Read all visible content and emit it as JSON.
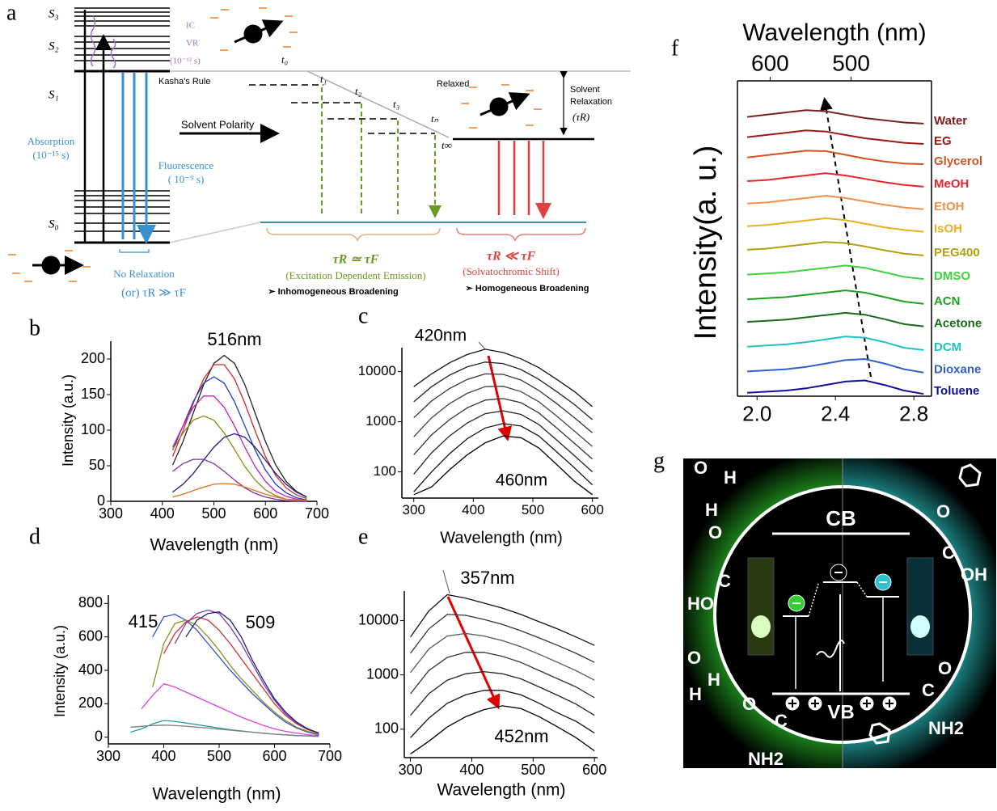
{
  "panel_labels": [
    "a",
    "b",
    "c",
    "d",
    "e",
    "f",
    "g"
  ],
  "diagram_a": {
    "s3": "S₃",
    "s2": "S₂",
    "s1": "S₁",
    "s0": "S₀",
    "ic": "IC",
    "vr": "VR",
    "vr_time": "(10⁻¹² s)",
    "kasha": "Kasha's Rule",
    "absorption": "Absorption",
    "absorption_time": "(10⁻¹⁵ s)",
    "fluorescence": "Fluorescence",
    "fluorescence_time": "( 10⁻⁹ s)",
    "no_relaxation": "No Relaxation",
    "no_relaxation_cond": "(or) τR ≫ τF",
    "solvent_polarity": "Solvent Polarity",
    "t0": "t₀",
    "t1": "t₁",
    "t2": "t₂",
    "t3": "t₃",
    "tn": "tₙ",
    "tinf": "t∞",
    "relaxed": "Relaxed",
    "solvent_relaxation_1": "Solvent",
    "solvent_relaxation_2": "Relaxation",
    "tau_r": "(τR)",
    "cond_green": "τR ≃ τF",
    "green_note": "(Excitation Dependent Emission)",
    "green_broad": "➢ Inhomogeneous Broadening",
    "cond_red": "τR ≪ τF",
    "red_note": "(Solvatochromic Shift)",
    "red_broad": "➢ Homogeneous Broadening"
  },
  "chart_data": [
    {
      "type": "line",
      "xlabel": "Wavelength (nm)",
      "ylabel": "Intensity (a.u.)",
      "annotations": [
        "516nm"
      ],
      "x": [
        420,
        440,
        460,
        480,
        500,
        520,
        540,
        560,
        580,
        600,
        620,
        640,
        660,
        680
      ],
      "xlim": [
        300,
        700
      ],
      "xticks": [
        300,
        400,
        500,
        600,
        700
      ],
      "ylim": [
        0,
        225
      ],
      "yticks": [
        0,
        50,
        100,
        150,
        200
      ],
      "series": [
        {
          "color": "#222222",
          "values": [
            51,
            84,
            124,
            164,
            194,
            205,
            194,
            164,
            124,
            84,
            51,
            28,
            14,
            6
          ]
        },
        {
          "color": "#d62728",
          "values": [
            63,
            99,
            138,
            172,
            192,
            192,
            172,
            138,
            99,
            63,
            36,
            19,
            9,
            4
          ]
        },
        {
          "color": "#1f3fbf",
          "values": [
            72,
            106,
            140,
            166,
            175,
            166,
            140,
            106,
            72,
            44,
            24,
            12,
            5,
            2
          ]
        },
        {
          "color": "#c020c0",
          "values": [
            76,
            106,
            132,
            148,
            148,
            132,
            106,
            76,
            49,
            28,
            14,
            7,
            3,
            1
          ]
        },
        {
          "color": "#8a8a10",
          "values": [
            73,
            96,
            114,
            120,
            114,
            96,
            73,
            49,
            30,
            16,
            8,
            3,
            1,
            0
          ]
        },
        {
          "color": "#1a1a80",
          "values": [
            13,
            24,
            39,
            58,
            76,
            90,
            95,
            90,
            76,
            58,
            39,
            24,
            13,
            6
          ]
        },
        {
          "color": "#7a30a0",
          "values": [
            42,
            53,
            59,
            59,
            53,
            42,
            30,
            19,
            11,
            6,
            3,
            1,
            0,
            0
          ]
        },
        {
          "color": "#e07020",
          "values": [
            6,
            10,
            15,
            20,
            24,
            25,
            24,
            20,
            15,
            10,
            6,
            3,
            2,
            1
          ]
        }
      ]
    },
    {
      "type": "line",
      "log_y": true,
      "xlabel": "Wavelength (nm)",
      "annotations": [
        "420nm",
        "460nm"
      ],
      "x": [
        300,
        330,
        360,
        390,
        420,
        450,
        480,
        510,
        540,
        570,
        600
      ],
      "xlim": [
        280,
        610
      ],
      "xticks": [
        300,
        400,
        500,
        600
      ],
      "ylim": [
        30,
        30000
      ],
      "yticks": [
        100,
        1000,
        10000
      ],
      "series": [
        {
          "color": "#111111",
          "values": [
            5000,
            9000,
            15000,
            22000,
            28000,
            24000,
            18000,
            12000,
            7000,
            4000,
            2000
          ]
        },
        {
          "color": "#222222",
          "values": [
            2500,
            5000,
            8500,
            12500,
            15500,
            14500,
            11000,
            7000,
            4000,
            2200,
            1100
          ]
        },
        {
          "color": "#333333",
          "values": [
            1200,
            2600,
            4600,
            7000,
            9000,
            8800,
            6800,
            4200,
            2300,
            1200,
            600
          ]
        },
        {
          "color": "#444444",
          "values": [
            500,
            1200,
            2300,
            3700,
            5000,
            5100,
            4000,
            2500,
            1300,
            650,
            320
          ]
        },
        {
          "color": "#333333",
          "values": [
            220,
            550,
            1100,
            1900,
            2700,
            2900,
            2400,
            1500,
            750,
            370,
            180
          ]
        },
        {
          "color": "#222222",
          "values": [
            90,
            240,
            520,
            950,
            1450,
            1650,
            1400,
            880,
            430,
            210,
            100
          ]
        },
        {
          "color": "#111111",
          "values": [
            40,
            100,
            230,
            460,
            750,
            920,
            820,
            520,
            250,
            120,
            55
          ]
        },
        {
          "color": "#000000",
          "values": [
            35,
            50,
            110,
            220,
            380,
            520,
            480,
            300,
            140,
            65,
            35
          ]
        }
      ]
    },
    {
      "type": "line",
      "xlabel": "Wavelength (nm)",
      "ylabel": "Intensity (a.u.)",
      "annotations": [
        "415",
        "509"
      ],
      "x": [
        340,
        360,
        380,
        400,
        420,
        440,
        460,
        480,
        500,
        520,
        540,
        560,
        580,
        600,
        620,
        640,
        660,
        680
      ],
      "xlim": [
        300,
        700
      ],
      "xticks": [
        300,
        400,
        500,
        600,
        700
      ],
      "ylim": [
        -40,
        850
      ],
      "yticks": [
        0,
        200,
        400,
        600,
        800
      ],
      "series": [
        {
          "color": "#3050d0",
          "values": [
            null,
            null,
            600,
            720,
            735,
            700,
            640,
            560,
            480,
            400,
            330,
            260,
            200,
            140,
            90,
            55,
            30,
            15
          ]
        },
        {
          "color": "#909020",
          "values": [
            null,
            null,
            300,
            560,
            680,
            700,
            670,
            600,
            520,
            430,
            350,
            280,
            210,
            150,
            100,
            60,
            35,
            20
          ]
        },
        {
          "color": "#d03030",
          "values": [
            null,
            null,
            null,
            500,
            620,
            690,
            720,
            700,
            640,
            560,
            470,
            380,
            290,
            200,
            130,
            80,
            45,
            25
          ]
        },
        {
          "color": "#8040b0",
          "values": [
            null,
            null,
            null,
            null,
            560,
            680,
            740,
            760,
            740,
            660,
            560,
            440,
            320,
            220,
            140,
            85,
            50,
            25
          ]
        },
        {
          "color": "#202080",
          "values": [
            null,
            null,
            null,
            null,
            null,
            600,
            700,
            740,
            750,
            700,
            600,
            460,
            340,
            230,
            150,
            90,
            50,
            25
          ]
        },
        {
          "color": "#e040e0",
          "values": [
            null,
            170,
            250,
            320,
            300,
            270,
            240,
            210,
            180,
            150,
            120,
            95,
            70,
            50,
            35,
            25,
            15,
            10
          ]
        },
        {
          "color": "#20a0a0",
          "values": [
            30,
            50,
            80,
            100,
            95,
            85,
            75,
            65,
            55,
            45,
            38,
            30,
            24,
            18,
            14,
            10,
            8,
            5
          ]
        },
        {
          "color": "#808080",
          "values": [
            60,
            65,
            70,
            72,
            70,
            66,
            60,
            55,
            48,
            42,
            36,
            30,
            24,
            18,
            14,
            10,
            7,
            4
          ]
        }
      ]
    },
    {
      "type": "line",
      "log_y": true,
      "xlabel": "Wavelength (nm)",
      "annotations": [
        "357nm",
        "452nm"
      ],
      "x": [
        300,
        330,
        360,
        390,
        420,
        450,
        480,
        510,
        540,
        570,
        600
      ],
      "xlim": [
        290,
        605
      ],
      "xticks": [
        300,
        400,
        500,
        600
      ],
      "ylim": [
        30,
        35000
      ],
      "yticks": [
        100,
        1000,
        10000
      ],
      "series": [
        {
          "color": "#111111",
          "values": [
            5000,
            15000,
            30000,
            26000,
            21000,
            17000,
            13000,
            9500,
            7000,
            5000,
            3500
          ]
        },
        {
          "color": "#333333",
          "values": [
            2500,
            7000,
            13000,
            12500,
            10500,
            8500,
            6500,
            4800,
            3500,
            2500,
            1700
          ]
        },
        {
          "color": "#555555",
          "values": [
            1100,
            3000,
            5200,
            5800,
            5200,
            4300,
            3300,
            2400,
            1700,
            1200,
            800
          ]
        },
        {
          "color": "#333333",
          "values": [
            450,
            1200,
            2100,
            2600,
            2600,
            2200,
            1700,
            1200,
            850,
            600,
            380
          ]
        },
        {
          "color": "#222222",
          "values": [
            180,
            450,
            800,
            1050,
            1150,
            1050,
            850,
            600,
            420,
            290,
            180
          ]
        },
        {
          "color": "#111111",
          "values": [
            70,
            160,
            300,
            430,
            520,
            520,
            430,
            300,
            200,
            140,
            85
          ]
        },
        {
          "color": "#000000",
          "values": [
            35,
            60,
            110,
            170,
            230,
            270,
            240,
            170,
            110,
            70,
            40
          ]
        }
      ]
    },
    {
      "type": "line",
      "ylabel": "Intensity(a. u.)",
      "top_xlabel": "Wavelength (nm)",
      "top_xticks": [
        600,
        500
      ],
      "x": [
        1.95,
        2.05,
        2.15,
        2.25,
        2.35,
        2.45,
        2.55,
        2.65,
        2.75,
        2.85
      ],
      "xlim": [
        1.9,
        2.89
      ],
      "xticks": [
        {
          "value": 2,
          "label": "2.0"
        },
        2.4,
        2.8
      ],
      "ylim": [
        0,
        14
      ],
      "series": [
        {
          "name": "Water",
          "color": "#7b1f1f",
          "values": [
            12.4,
            12.5,
            12.6,
            12.7,
            12.65,
            12.5,
            12.35,
            12.25,
            12.15,
            12.1
          ]
        },
        {
          "name": "EG",
          "color": "#a01818",
          "values": [
            11.5,
            11.6,
            11.7,
            11.8,
            11.75,
            11.6,
            11.45,
            11.35,
            11.25,
            11.2
          ]
        },
        {
          "name": "Glycerol",
          "color": "#d2531f",
          "values": [
            10.6,
            10.7,
            10.8,
            10.9,
            10.88,
            10.72,
            10.55,
            10.42,
            10.33,
            10.3
          ]
        },
        {
          "name": "MeOH",
          "color": "#e8252a",
          "values": [
            9.55,
            9.6,
            9.7,
            9.8,
            9.9,
            9.8,
            9.65,
            9.5,
            9.38,
            9.3
          ]
        },
        {
          "name": "EtOH",
          "color": "#f0904a",
          "values": [
            8.55,
            8.6,
            8.7,
            8.8,
            8.9,
            8.8,
            8.65,
            8.5,
            8.38,
            8.3
          ]
        },
        {
          "name": "IsOH",
          "color": "#e8b020",
          "values": [
            7.55,
            7.6,
            7.7,
            7.8,
            7.9,
            7.82,
            7.66,
            7.5,
            7.38,
            7.3
          ]
        },
        {
          "name": "PEG400",
          "color": "#b0a010",
          "values": [
            6.5,
            6.55,
            6.65,
            6.75,
            6.85,
            6.8,
            6.65,
            6.48,
            6.33,
            6.25
          ]
        },
        {
          "name": "DMSO",
          "color": "#40d040",
          "values": [
            5.4,
            5.45,
            5.5,
            5.6,
            5.7,
            5.8,
            5.7,
            5.5,
            5.3,
            5.2
          ]
        },
        {
          "name": "ACN",
          "color": "#20a020",
          "values": [
            4.3,
            4.35,
            4.4,
            4.5,
            4.6,
            4.7,
            4.6,
            4.4,
            4.2,
            4.1
          ]
        },
        {
          "name": "Acetone",
          "color": "#1a6a1a",
          "values": [
            3.3,
            3.35,
            3.4,
            3.5,
            3.6,
            3.7,
            3.62,
            3.42,
            3.2,
            3.1
          ]
        },
        {
          "name": "DCM",
          "color": "#20c0c0",
          "values": [
            2.2,
            2.25,
            2.3,
            2.4,
            2.52,
            2.65,
            2.6,
            2.4,
            2.15,
            2.05
          ]
        },
        {
          "name": "Dioxane",
          "color": "#3060d0",
          "values": [
            1.1,
            1.15,
            1.2,
            1.3,
            1.45,
            1.6,
            1.65,
            1.45,
            1.2,
            1.05
          ]
        },
        {
          "name": "Toluene",
          "color": "#1010a0",
          "values": [
            0.15,
            0.2,
            0.25,
            0.35,
            0.5,
            0.65,
            0.7,
            0.5,
            0.25,
            0.1
          ]
        }
      ]
    }
  ],
  "diagram_g": {
    "cb": "CB",
    "vb": "VB",
    "left_groups": [
      "O",
      "H",
      "H",
      "O",
      "C",
      "HO",
      "O",
      "H",
      "H",
      "O",
      "C",
      "NH2"
    ],
    "right_groups": [
      "O",
      "C",
      "OH",
      "C",
      "O",
      "NH2"
    ]
  }
}
